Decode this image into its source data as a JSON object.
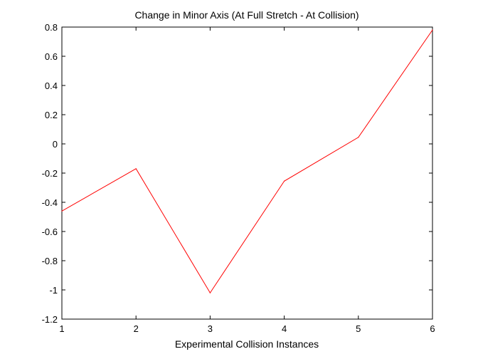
{
  "chart_data": {
    "type": "line",
    "title": "Change in Minor Axis (At Full Stretch - At Collision)",
    "xlabel": "Experimental Collision Instances",
    "ylabel": "",
    "xlim": [
      1,
      6
    ],
    "ylim": [
      -1.2,
      0.8
    ],
    "xticks": [
      "1",
      "2",
      "3",
      "4",
      "5",
      "6"
    ],
    "yticks": [
      "-1.2",
      "-1",
      "-0.8",
      "-0.6",
      "-0.4",
      "-0.2",
      "0",
      "0.2",
      "0.4",
      "0.6",
      "0.8"
    ],
    "grid": false,
    "series": [
      {
        "color": "#ff0000",
        "x": [
          1,
          2,
          3,
          4,
          5,
          6
        ],
        "y": [
          -0.46,
          -0.17,
          -1.02,
          -0.255,
          0.045,
          0.78
        ]
      }
    ]
  }
}
